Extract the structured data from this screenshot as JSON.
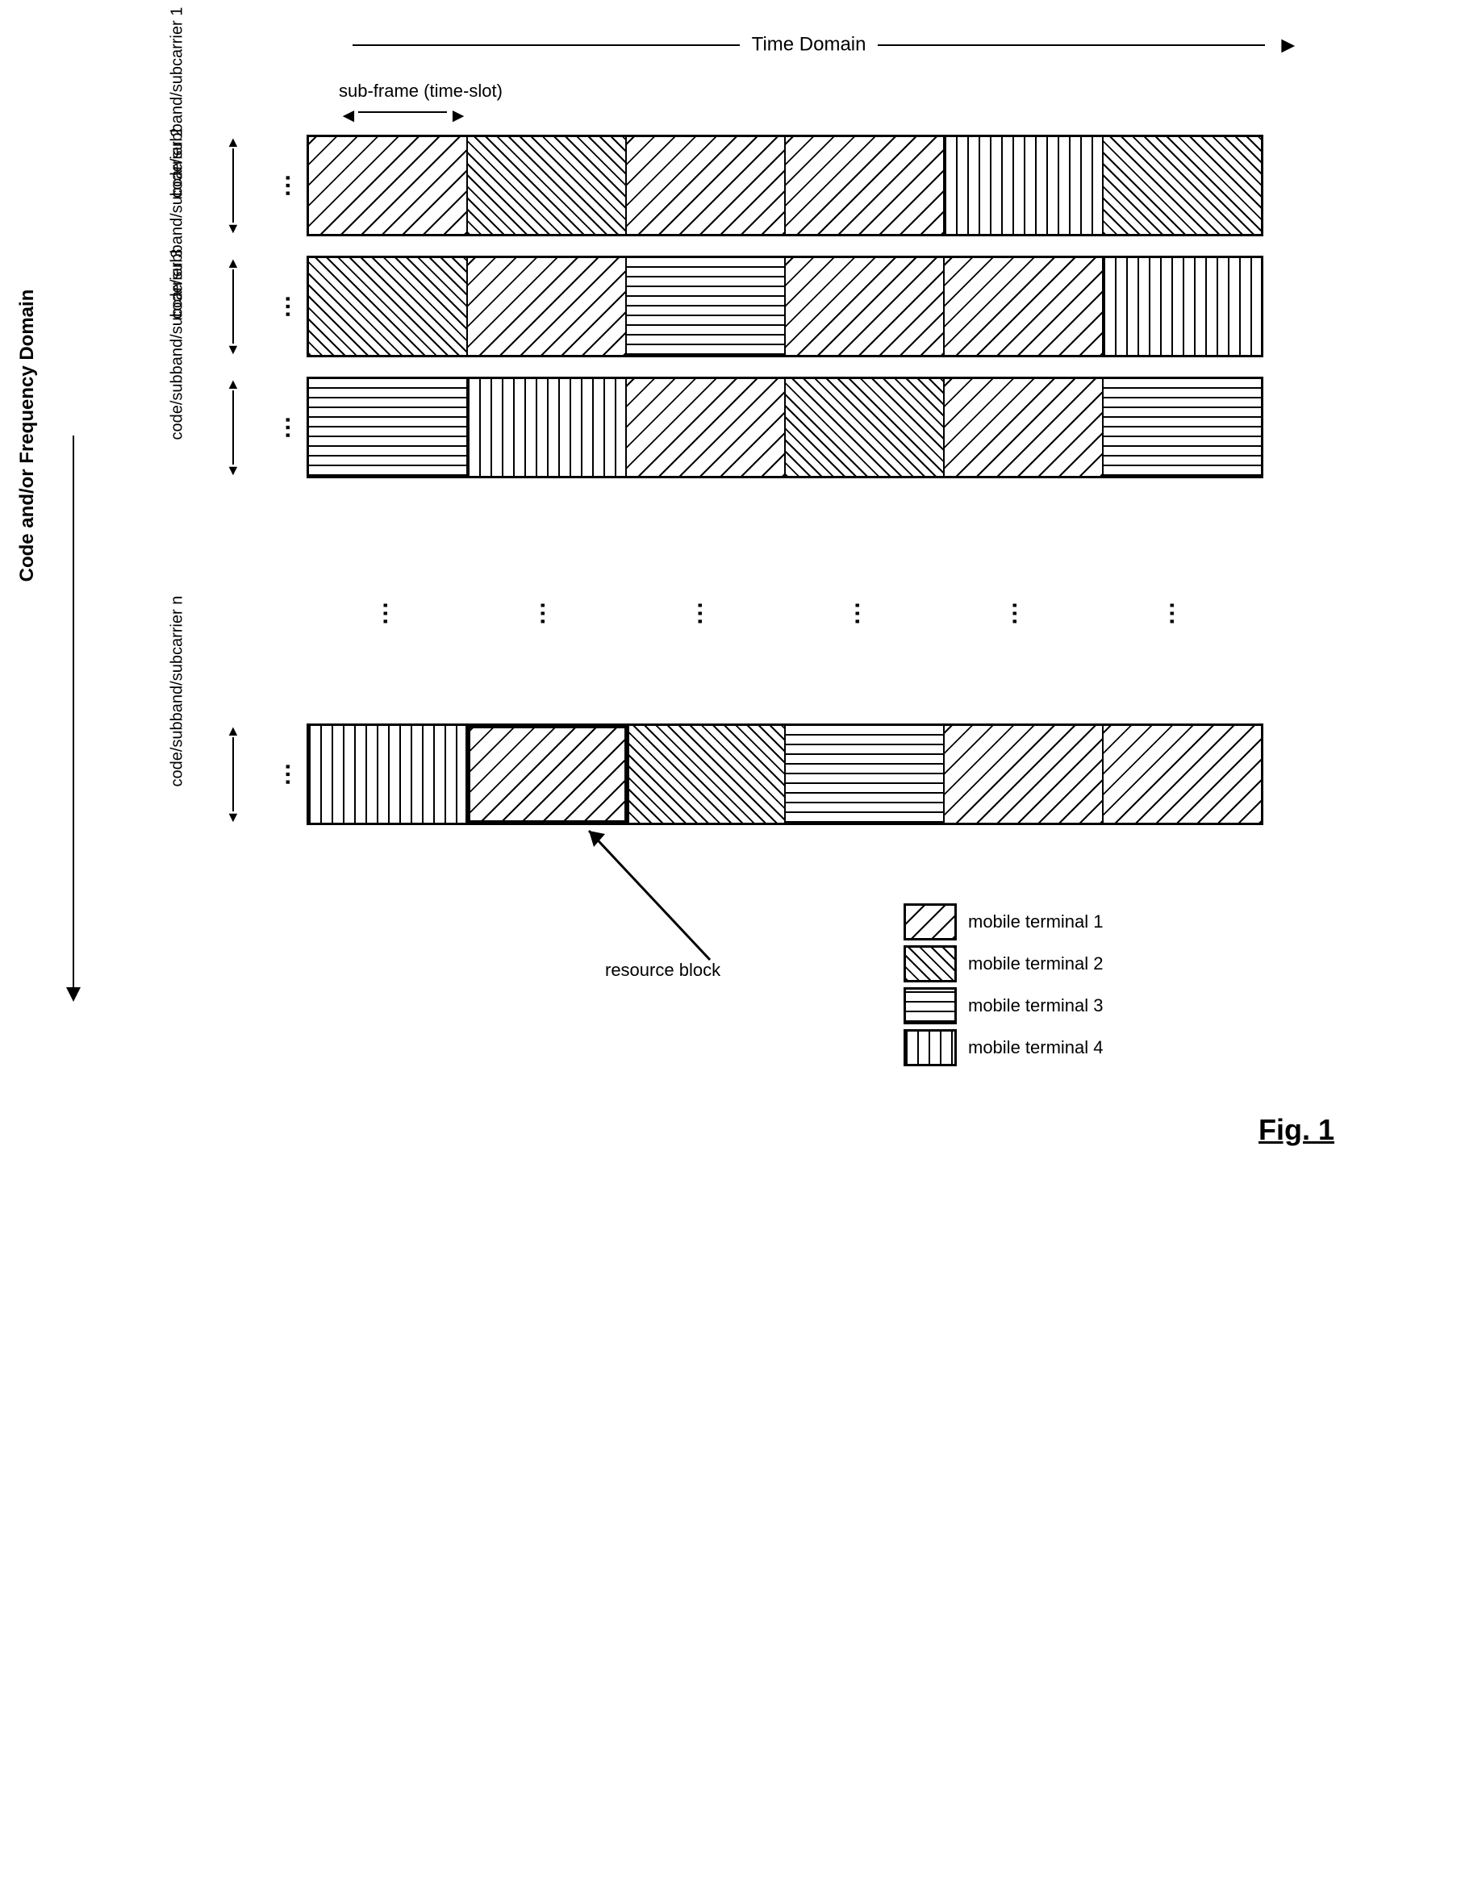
{
  "labels": {
    "time_domain": "Time Domain",
    "sub_frame": "sub-frame (time-slot)",
    "code_freq": "Code and/or\nFrequency Domain",
    "resource_block": "resource block",
    "figure": "Fig. 1"
  },
  "patterns": {
    "t1": "pat1",
    "t2": "pat2",
    "t3": "pat3",
    "t4": "pat4"
  },
  "row_labels": [
    "code/subband/subcarrier 1",
    "code/subband/subcarrier 2",
    "code/subband/subcarrier 3",
    "code/subband/subcarrier n"
  ],
  "rows": [
    [
      "t1",
      "t2",
      "t1",
      "t1",
      "t4",
      "t2"
    ],
    [
      "t2",
      "t1",
      "t3",
      "t1",
      "t1",
      "t4"
    ],
    [
      "t3",
      "t4",
      "t1",
      "t2",
      "t1",
      "t3"
    ],
    [
      "t4",
      "t1",
      "t2",
      "t3",
      "t1",
      "t1"
    ]
  ],
  "highlight": {
    "row": 3,
    "col": 1
  },
  "legend": [
    {
      "pat": "t1",
      "label": "mobile terminal 1"
    },
    {
      "pat": "t2",
      "label": "mobile terminal 2"
    },
    {
      "pat": "t3",
      "label": "mobile terminal 3"
    },
    {
      "pat": "t4",
      "label": "mobile terminal 4"
    }
  ],
  "colors": {
    "stroke": "#000000",
    "background": "#ffffff"
  }
}
